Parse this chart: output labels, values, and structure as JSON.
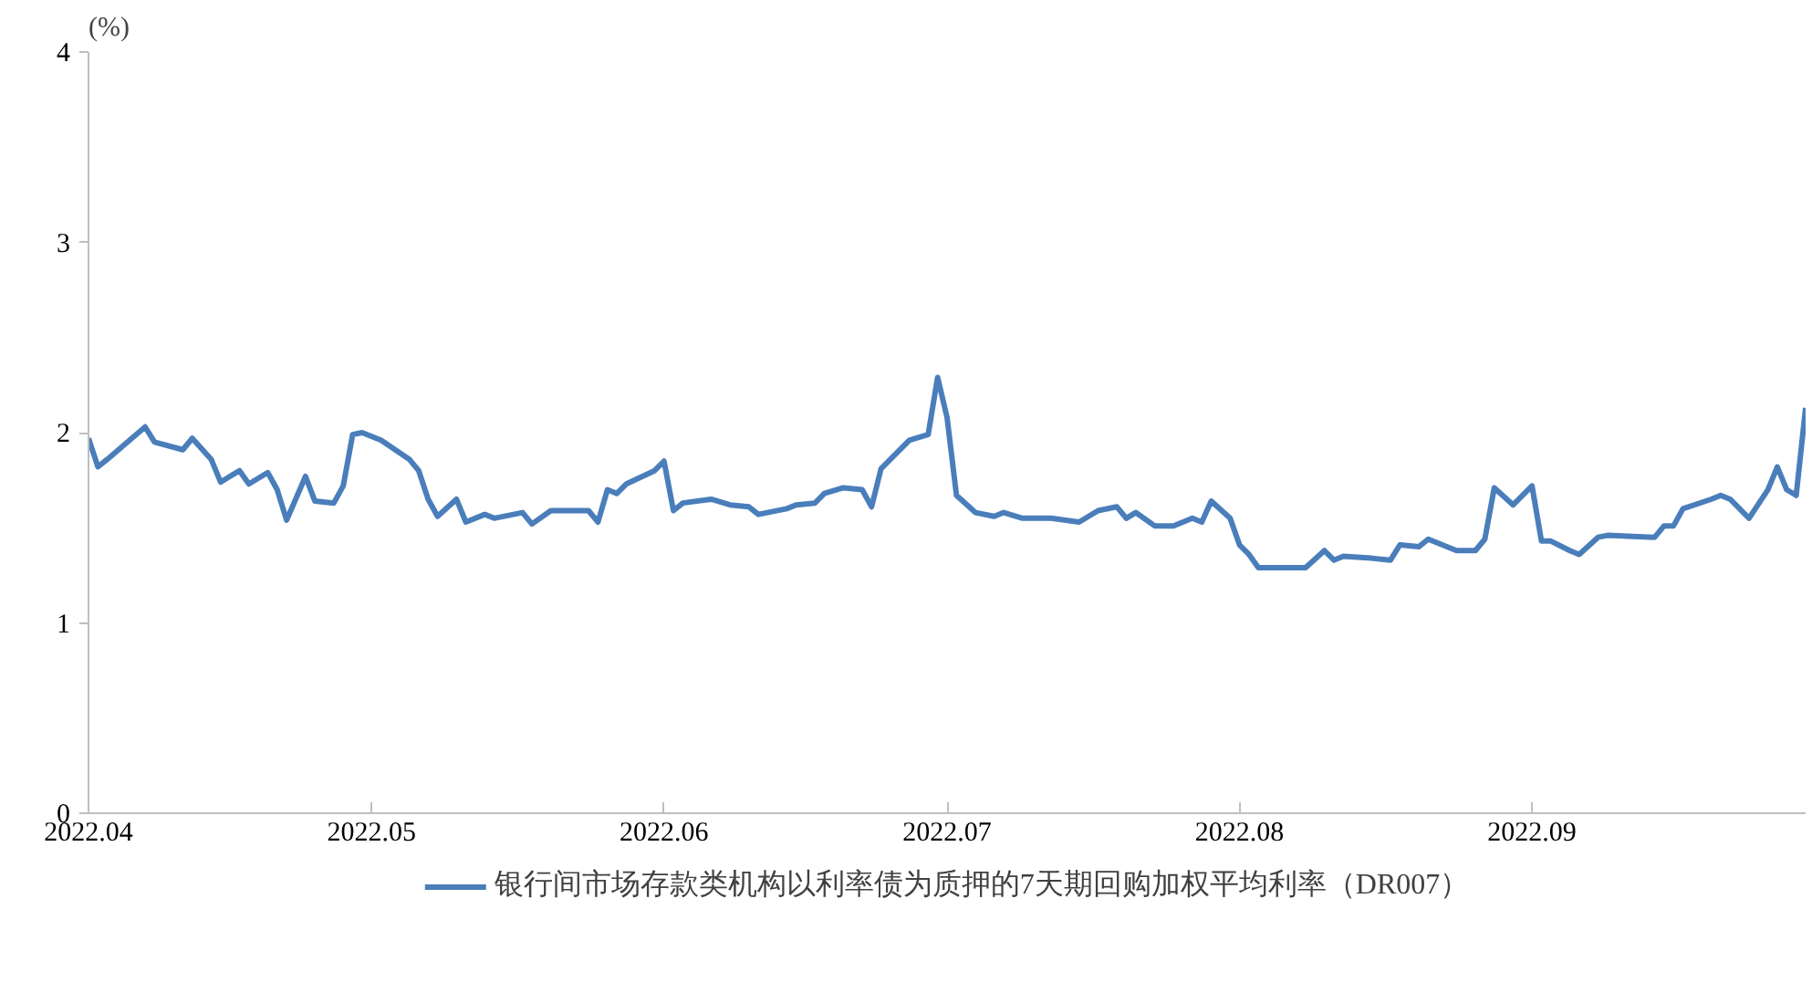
{
  "chart_data": {
    "type": "line",
    "ylabel": "(%)",
    "x": [
      "2022-04-01",
      "2022-04-02",
      "2022-04-03",
      "2022-04-07",
      "2022-04-08",
      "2022-04-11",
      "2022-04-12",
      "2022-04-14",
      "2022-04-15",
      "2022-04-17",
      "2022-04-18",
      "2022-04-20",
      "2022-04-21",
      "2022-04-22",
      "2022-04-24",
      "2022-04-25",
      "2022-04-27",
      "2022-04-28",
      "2022-04-29",
      "2022-04-30",
      "2022-05-02",
      "2022-05-05",
      "2022-05-06",
      "2022-05-07",
      "2022-05-08",
      "2022-05-10",
      "2022-05-11",
      "2022-05-13",
      "2022-05-14",
      "2022-05-17",
      "2022-05-18",
      "2022-05-20",
      "2022-05-24",
      "2022-05-25",
      "2022-05-26",
      "2022-05-27",
      "2022-05-28",
      "2022-05-31",
      "2022-06-01",
      "2022-06-02",
      "2022-06-03",
      "2022-06-06",
      "2022-06-08",
      "2022-06-10",
      "2022-06-11",
      "2022-06-14",
      "2022-06-15",
      "2022-06-17",
      "2022-06-18",
      "2022-06-20",
      "2022-06-22",
      "2022-06-23",
      "2022-06-24",
      "2022-06-27",
      "2022-06-29",
      "2022-06-30",
      "2022-07-01",
      "2022-07-02",
      "2022-07-04",
      "2022-07-06",
      "2022-07-07",
      "2022-07-09",
      "2022-07-12",
      "2022-07-15",
      "2022-07-17",
      "2022-07-19",
      "2022-07-20",
      "2022-07-21",
      "2022-07-23",
      "2022-07-25",
      "2022-07-27",
      "2022-07-28",
      "2022-07-29",
      "2022-07-31",
      "2022-08-01",
      "2022-08-02",
      "2022-08-03",
      "2022-08-05",
      "2022-08-08",
      "2022-08-10",
      "2022-08-11",
      "2022-08-12",
      "2022-08-15",
      "2022-08-17",
      "2022-08-18",
      "2022-08-20",
      "2022-08-21",
      "2022-08-24",
      "2022-08-26",
      "2022-08-27",
      "2022-08-28",
      "2022-08-30",
      "2022-09-01",
      "2022-09-02",
      "2022-09-03",
      "2022-09-05",
      "2022-09-06",
      "2022-09-08",
      "2022-09-09",
      "2022-09-14",
      "2022-09-15",
      "2022-09-16",
      "2022-09-17",
      "2022-09-20",
      "2022-09-21",
      "2022-09-22",
      "2022-09-24",
      "2022-09-26",
      "2022-09-27",
      "2022-09-28",
      "2022-09-29",
      "2022-09-30"
    ],
    "series": [
      {
        "name": "银行间市场存款类机构以利率债为质押的7天期回购加权平均利率（DR007）",
        "color": "#4a7ebb",
        "values": [
          1.97,
          1.82,
          1.86,
          2.03,
          1.95,
          1.91,
          1.97,
          1.86,
          1.74,
          1.8,
          1.73,
          1.79,
          1.7,
          1.54,
          1.77,
          1.64,
          1.63,
          1.72,
          1.99,
          2.0,
          1.96,
          1.86,
          1.8,
          1.65,
          1.56,
          1.65,
          1.53,
          1.57,
          1.55,
          1.58,
          1.52,
          1.59,
          1.59,
          1.53,
          1.7,
          1.68,
          1.73,
          1.8,
          1.85,
          1.59,
          1.63,
          1.65,
          1.62,
          1.61,
          1.57,
          1.6,
          1.62,
          1.63,
          1.68,
          1.71,
          1.7,
          1.61,
          1.81,
          1.96,
          1.99,
          2.29,
          2.08,
          1.67,
          1.58,
          1.56,
          1.58,
          1.55,
          1.55,
          1.53,
          1.59,
          1.61,
          1.55,
          1.58,
          1.51,
          1.51,
          1.55,
          1.53,
          1.64,
          1.55,
          1.41,
          1.36,
          1.29,
          1.29,
          1.29,
          1.38,
          1.33,
          1.35,
          1.34,
          1.33,
          1.41,
          1.4,
          1.44,
          1.38,
          1.38,
          1.44,
          1.71,
          1.62,
          1.72,
          1.43,
          1.43,
          1.38,
          1.36,
          1.45,
          1.46,
          1.45,
          1.51,
          1.51,
          1.6,
          1.65,
          1.67,
          1.65,
          1.55,
          1.7,
          1.82,
          1.7,
          1.67,
          2.13
        ]
      }
    ],
    "xlim": [
      "2022-04-01",
      "2022-09-30"
    ],
    "xticks": [
      {
        "value": "2022-04-01",
        "label": "2022.04"
      },
      {
        "value": "2022-05-01",
        "label": "2022.05"
      },
      {
        "value": "2022-06-01",
        "label": "2022.06"
      },
      {
        "value": "2022-07-01",
        "label": "2022.07"
      },
      {
        "value": "2022-08-01",
        "label": "2022.08"
      },
      {
        "value": "2022-09-01",
        "label": "2022.09"
      }
    ],
    "ylim": [
      0,
      4
    ],
    "yticks": [
      0,
      1,
      2,
      3,
      4
    ],
    "grid": false,
    "legend": "bottom",
    "marker": "none",
    "line_style": "solid"
  }
}
